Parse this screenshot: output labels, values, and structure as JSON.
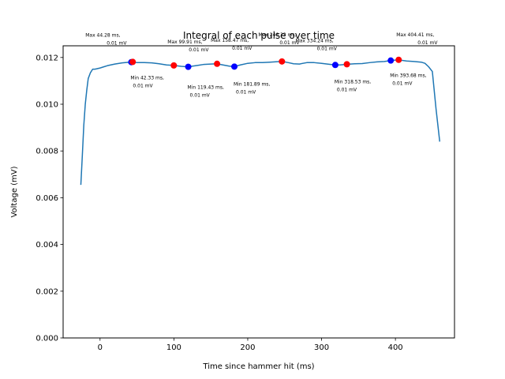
{
  "chart_data": {
    "type": "line",
    "title": "Integral of each pulse over time",
    "xlabel": "Time since hammer hit (ms)",
    "ylabel": "Voltage (mV)",
    "xlim": [
      -50,
      480
    ],
    "ylim": [
      0,
      0.0125
    ],
    "xticks": [
      0,
      100,
      200,
      300,
      400
    ],
    "yticks": [
      0.0,
      0.002,
      0.004,
      0.006,
      0.008,
      0.01,
      0.012
    ],
    "ytick_labels": [
      "0.000",
      "0.002",
      "0.004",
      "0.006",
      "0.008",
      "0.010",
      "0.012"
    ],
    "grid": false,
    "line_color": "#1f77b4",
    "series": [
      {
        "x": [
          -26,
          -24,
          -22,
          -20,
          -18,
          -16,
          -13,
          -10,
          -7,
          -4,
          0,
          5,
          10,
          20,
          30,
          40,
          44,
          50,
          60,
          70,
          80,
          90,
          100,
          110,
          119,
          130,
          140,
          150,
          158,
          165,
          175,
          182,
          190,
          200,
          210,
          220,
          230,
          240,
          247,
          255,
          262,
          270,
          280,
          290,
          300,
          310,
          318,
          325,
          335,
          345,
          355,
          365,
          375,
          385,
          394,
          404,
          415,
          425,
          435,
          440,
          445,
          450,
          455,
          460
        ],
        "y": [
          0.00655,
          0.0078,
          0.0091,
          0.01,
          0.0106,
          0.0111,
          0.01135,
          0.0115,
          0.0115,
          0.01152,
          0.01155,
          0.0116,
          0.01165,
          0.01172,
          0.01177,
          0.0118,
          0.01181,
          0.01178,
          0.01178,
          0.01177,
          0.01173,
          0.01168,
          0.01166,
          0.01162,
          0.0116,
          0.01165,
          0.0117,
          0.01172,
          0.01173,
          0.01169,
          0.01163,
          0.01161,
          0.01168,
          0.01175,
          0.01178,
          0.01178,
          0.0118,
          0.01182,
          0.01183,
          0.01178,
          0.01173,
          0.01172,
          0.01178,
          0.01178,
          0.01175,
          0.01171,
          0.01168,
          0.01168,
          0.01171,
          0.01173,
          0.01174,
          0.01178,
          0.01181,
          0.01183,
          0.01187,
          0.0119,
          0.01185,
          0.01183,
          0.0118,
          0.01175,
          0.0116,
          0.0114,
          0.0098,
          0.0084
        ]
      }
    ],
    "extrema": {
      "max": {
        "color": "#ff0000",
        "points": [
          {
            "x": 44.28,
            "y": 0.01181,
            "label_time": "Max 44.28 ms,",
            "label_value": "0.01 mV"
          },
          {
            "x": 99.91,
            "y": 0.01166,
            "label_time": "Max 99.91 ms,",
            "label_value": "0.01 mV"
          },
          {
            "x": 158.47,
            "y": 0.01173,
            "label_time": "Max 158.47 ms,",
            "label_value": "0.01 mV"
          },
          {
            "x": 246.33,
            "y": 0.01183,
            "label_time": "Max 246.33 ms,",
            "label_value": "0.01 mV"
          },
          {
            "x": 334.24,
            "y": 0.01171,
            "label_time": "Max 334.24 ms,",
            "label_value": "0.01 mV"
          },
          {
            "x": 404.41,
            "y": 0.0119,
            "label_time": "Max 404.41 ms,",
            "label_value": "0.01 mV"
          }
        ]
      },
      "min": {
        "color": "#0000ff",
        "points": [
          {
            "x": 42.33,
            "y": 0.0118,
            "label_time": "Min 42.33 ms,",
            "label_value": "0.01 mV"
          },
          {
            "x": 119.43,
            "y": 0.0116,
            "label_time": "Min 119.43 ms,",
            "label_value": "0.01 mV"
          },
          {
            "x": 181.89,
            "y": 0.01161,
            "label_time": "Min 181.89 ms,",
            "label_value": "0.01 mV"
          },
          {
            "x": 318.53,
            "y": 0.01168,
            "label_time": "Min 318.53 ms,",
            "label_value": "0.01 mV"
          },
          {
            "x": 393.68,
            "y": 0.01187,
            "label_time": "Min 393.68 ms,",
            "label_value": "0.01 mV"
          }
        ]
      }
    }
  }
}
